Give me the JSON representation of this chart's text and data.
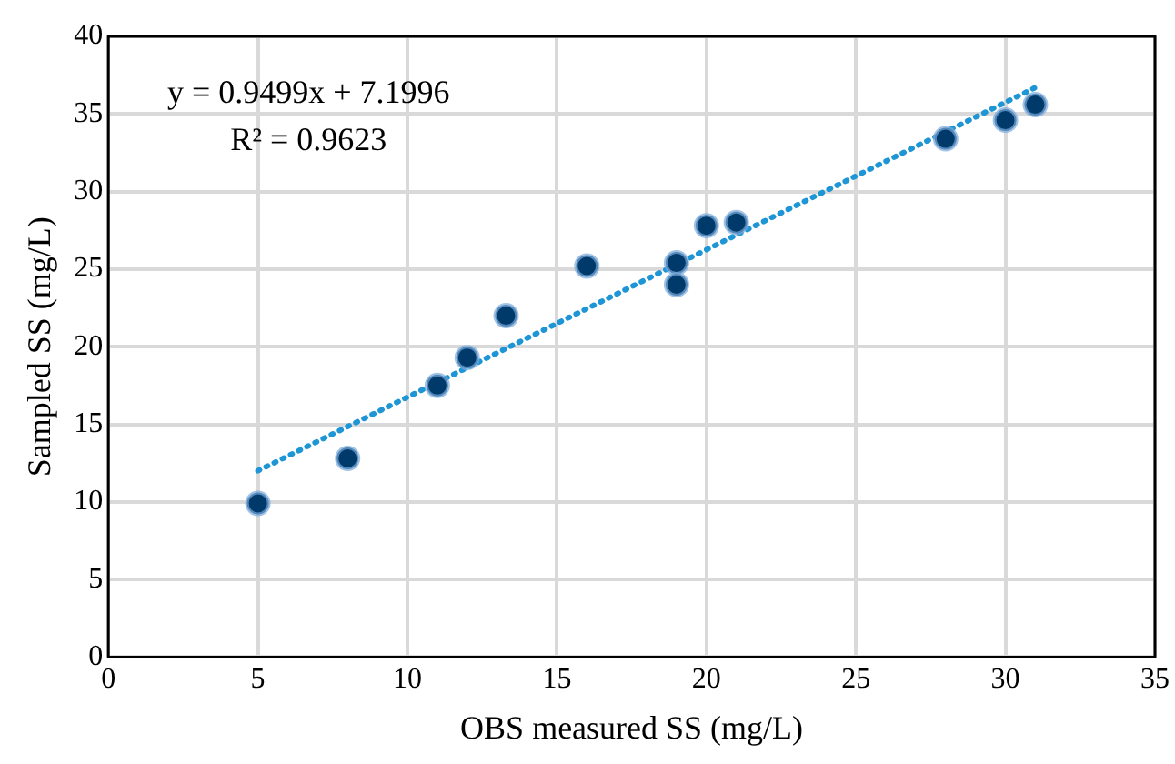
{
  "chart_data": {
    "type": "scatter",
    "xlabel": "OBS measured SS (mg/L)",
    "ylabel": "Sampled SS (mg/L)",
    "xlim": [
      0,
      35
    ],
    "xticks": [
      0,
      5,
      10,
      15,
      20,
      25,
      30,
      35
    ],
    "ylim": [
      0,
      40
    ],
    "yticks": [
      0,
      5,
      10,
      15,
      20,
      25,
      30,
      35,
      40
    ],
    "grid": true,
    "legend": false,
    "marker": "circle",
    "series": [
      {
        "type": "scatter",
        "color": "#003a6b",
        "x": [
          5,
          8,
          11,
          12,
          13.3,
          16,
          19,
          19,
          20,
          21,
          28,
          30,
          31
        ],
        "values": [
          9.9,
          12.8,
          17.5,
          19.3,
          22,
          25.2,
          25.4,
          24,
          27.8,
          28,
          33.4,
          34.6,
          35.6
        ]
      },
      {
        "type": "line",
        "color": "#1e96d6",
        "line_style": "dotted",
        "marker": "none",
        "x": [
          5,
          31
        ],
        "values": [
          12,
          36.7
        ]
      }
    ],
    "annotations": [
      "y = 0.9499x + 7.1996",
      "R² = 0.9623"
    ]
  }
}
